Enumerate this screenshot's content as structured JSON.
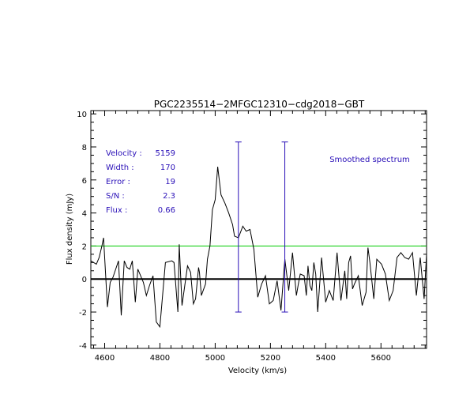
{
  "chart_data": {
    "type": "line",
    "title": "PGC2235514−2MFGC12310−cdg2018−GBT",
    "xlabel": "Velocity (km/s)",
    "ylabel": "Flux density (mJy)",
    "xlim": [
      4550,
      5765
    ],
    "ylim": [
      -4.2,
      10.2
    ],
    "x_ticks": [
      4600,
      4800,
      5000,
      5200,
      5400,
      5600
    ],
    "y_ticks": [
      -4,
      -2,
      0,
      2,
      4,
      6,
      8,
      10
    ],
    "annotation": "Smoothed spectrum",
    "grid": false,
    "colors": {
      "spectrum": "#000000",
      "zero_line": "#000000",
      "threshold_line": "#00cc00",
      "markers": "#2a10b8",
      "stats_text": "#2a10b8",
      "axes": "#000000"
    },
    "stats": [
      {
        "label": "Velocity :",
        "value": "5159"
      },
      {
        "label": "Width    :",
        "value": "170"
      },
      {
        "label": "Error    :",
        "value": "19"
      },
      {
        "label": "S/N      :",
        "value": "2.3"
      },
      {
        "label": "Flux     :",
        "value": "0.66"
      }
    ],
    "zero_level": 0,
    "threshold_level": 2.0,
    "markers": [
      {
        "x": 5084,
        "y_range": [
          -2,
          8.3
        ]
      },
      {
        "x": 5252,
        "y_range": [
          -2,
          8.3
        ]
      }
    ],
    "series": [
      {
        "x": [
          4550,
          4560,
          4570,
          4580,
          4590,
          4596,
          4610,
          4620,
          4630,
          4650,
          4660,
          4671,
          4681,
          4691,
          4700,
          4711,
          4720,
          4740,
          4751,
          4762,
          4775,
          4787,
          4800,
          4820,
          4843,
          4851,
          4865,
          4870,
          4880,
          4900,
          4911,
          4921,
          4929,
          4940,
          4943,
          4950,
          4965,
          4972,
          4981,
          4990,
          5000,
          5009,
          5021,
          5035,
          5049,
          5063,
          5070,
          5084,
          5100,
          5112,
          5126,
          5140,
          5154,
          5168,
          5182,
          5196,
          5210,
          5224,
          5238,
          5252,
          5266,
          5280,
          5294,
          5301,
          5308,
          5322,
          5330,
          5336,
          5343,
          5350,
          5357,
          5364,
          5371,
          5385,
          5400,
          5413,
          5427,
          5441,
          5455,
          5469,
          5476,
          5483,
          5490,
          5497,
          5504,
          5518,
          5532,
          5546,
          5553,
          5560,
          5574,
          5585,
          5602,
          5616,
          5630,
          5644,
          5658,
          5672,
          5686,
          5700,
          5714,
          5728,
          5742,
          5756,
          5765
        ],
        "y": [
          1.1,
          1.0,
          0.9,
          1.3,
          2.0,
          2.5,
          -1.7,
          -0.2,
          0.1,
          1.1,
          -2.2,
          1.1,
          0.7,
          0.6,
          1.1,
          -1.4,
          0.6,
          -0.2,
          -1.0,
          -0.4,
          0.2,
          -2.6,
          -2.9,
          1.0,
          1.1,
          1.0,
          -2.0,
          2.1,
          -1.6,
          0.8,
          0.4,
          -1.5,
          -1.2,
          0.7,
          0.4,
          -1.0,
          -0.3,
          1.2,
          2.0,
          4.2,
          4.8,
          6.8,
          5.1,
          4.6,
          4.0,
          3.3,
          2.6,
          2.5,
          3.2,
          2.9,
          3.0,
          1.8,
          -1.1,
          -0.3,
          0.2,
          -1.5,
          -1.3,
          -0.1,
          -1.9,
          1.2,
          -0.7,
          1.6,
          -1.0,
          -0.3,
          0.3,
          0.2,
          -1.0,
          0.8,
          -0.4,
          -0.7,
          1.0,
          0.3,
          -2.0,
          1.3,
          -1.4,
          -0.7,
          -1.3,
          1.6,
          -1.3,
          0.5,
          -1.2,
          1.0,
          1.4,
          -0.6,
          -0.3,
          0.2,
          -1.6,
          -0.8,
          1.9,
          1.0,
          -1.2,
          1.2,
          0.9,
          0.3,
          -1.3,
          -0.7,
          1.3,
          1.6,
          1.3,
          1.2,
          1.6,
          -1.0,
          1.3,
          -1.2,
          1.5
        ]
      }
    ]
  }
}
